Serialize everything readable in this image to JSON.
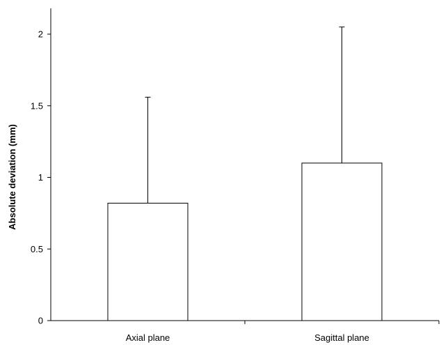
{
  "chart_data": {
    "type": "bar",
    "title": "",
    "xlabel": "",
    "ylabel": "Absolute deviation (mm)",
    "categories": [
      "Axial plane",
      "Sagittal plane"
    ],
    "values": [
      0.82,
      1.1
    ],
    "error_upper": [
      1.56,
      2.05
    ],
    "ylim": [
      0,
      2.0
    ],
    "yticks": [
      0,
      0.5,
      1,
      1.5,
      2
    ],
    "ytick_labels": [
      "0",
      "0.5",
      "1",
      "1.5",
      "2"
    ],
    "grid": false,
    "legend": "none",
    "colors": {
      "bar_fill": "#ffffff",
      "bar_stroke": "#000000",
      "axis": "#000000"
    }
  }
}
